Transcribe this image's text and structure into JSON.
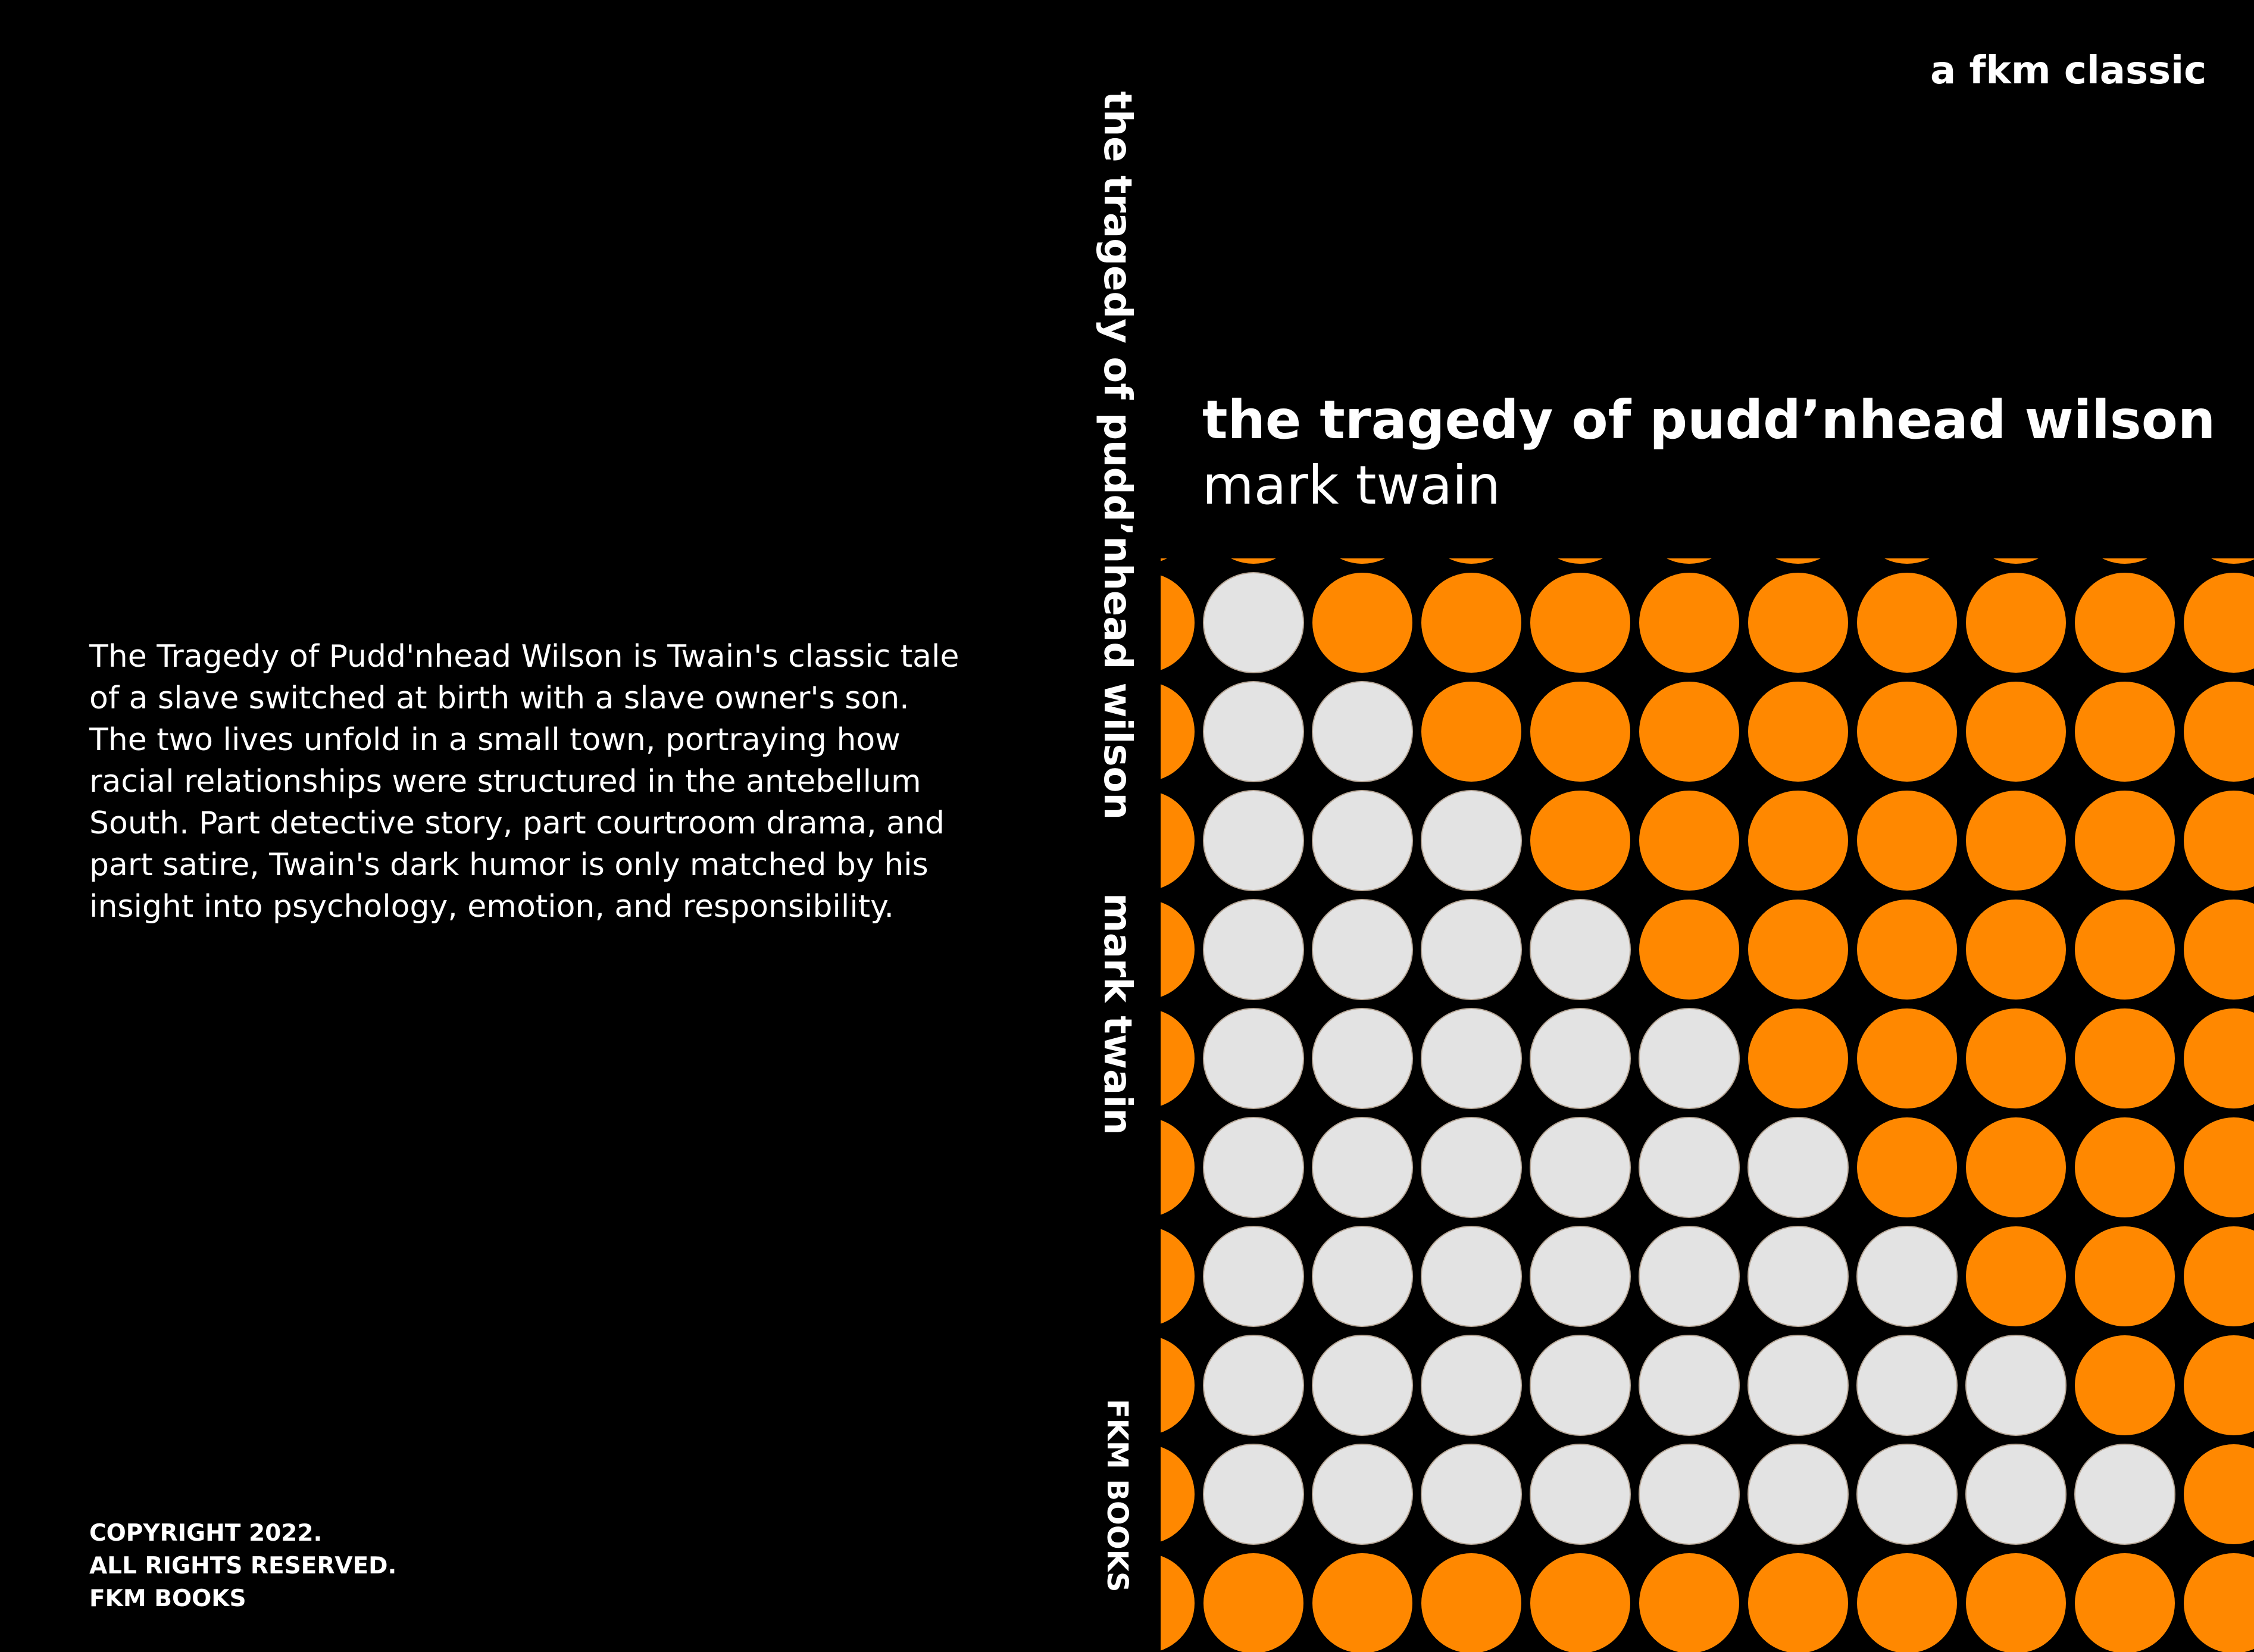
{
  "back_cover": {
    "blurb": "The Tragedy of Pudd'nhead Wilson is Twain's classic tale\nof a slave switched at birth with a slave owner's son.\nThe two lives unfold in a small town, portraying how\nracial relationships were structured in the antebellum\nSouth. Part detective story, part courtroom drama, and\npart satire, Twain's dark humor is only matched by his\ninsight into psychology, emotion, and responsibility.",
    "copyright_lines": [
      "COPYRIGHT 2022.",
      "ALL RIGHTS RESERVED.",
      "FKM BOOKS"
    ]
  },
  "spine": {
    "title": "the tragedy of pudd’nhead wilson",
    "author": "mark twain",
    "publisher": "FKM BOOKS"
  },
  "front_cover": {
    "series": "a fkm classic",
    "title": "the tragedy of pudd’nhead wilson",
    "author": "mark twain"
  },
  "pattern": {
    "colors": {
      "orange": "#ff8800",
      "gray": "#e3e3e3",
      "background": "#000000"
    },
    "gray_counts_per_row": [
      0,
      1,
      2,
      3,
      4,
      5,
      6,
      7,
      8,
      9,
      0
    ]
  }
}
